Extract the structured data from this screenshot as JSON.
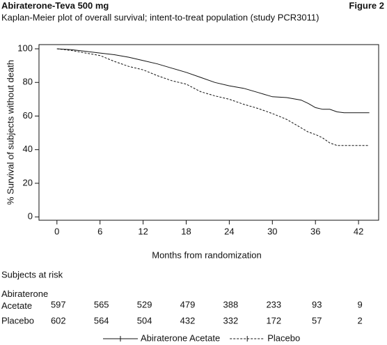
{
  "chart_data": {
    "type": "line",
    "header": "Abiraterone-Teva 500 mg",
    "figure_label": "Figure 2",
    "title": "Kaplan-Meier plot of overall survival; intent-to-treat population (study PCR3011)",
    "x_label": "Months from randomization",
    "y_label": "% Survival of subjects without death",
    "xlim": [
      -2.5,
      44.8
    ],
    "ylim": [
      -2,
      102.5
    ],
    "xticks": [
      0,
      6,
      12,
      18,
      24,
      30,
      36,
      42
    ],
    "yticks": [
      0,
      20,
      40,
      60,
      80,
      100
    ],
    "series": [
      {
        "name": "Abiraterone Acetate",
        "color": "#111111",
        "dash": false,
        "x": [
          0,
          2,
          4,
          6,
          8,
          10,
          12,
          14,
          16,
          18,
          20,
          22,
          24,
          26,
          28,
          30,
          32,
          34,
          35,
          36,
          37,
          38,
          39,
          40,
          42,
          43.5
        ],
        "values": [
          100,
          99.5,
          98.5,
          97.5,
          96.5,
          95,
          93,
          91,
          88.5,
          86,
          83,
          80,
          78,
          76.5,
          74,
          71.5,
          71,
          69.5,
          67.5,
          65,
          64,
          64,
          62.5,
          62,
          62,
          62
        ]
      },
      {
        "name": "Placebo",
        "color": "#111111",
        "dash": true,
        "x": [
          0,
          2,
          4,
          6,
          8,
          10,
          12,
          14,
          16,
          18,
          20,
          22,
          24,
          26,
          28,
          30,
          32,
          34,
          35,
          36,
          37,
          38,
          39,
          40,
          42,
          43.5
        ],
        "values": [
          100,
          99,
          97.5,
          96,
          92.5,
          89.5,
          87.5,
          84,
          81,
          79,
          74.5,
          72,
          70,
          67,
          64.5,
          61.5,
          58,
          53,
          50.5,
          49,
          47,
          44,
          42.5,
          42.5,
          42.5,
          42.5
        ]
      }
    ],
    "risk_table": {
      "title": "Subjects at risk",
      "rows": [
        {
          "label": "Abiraterone Acetate",
          "values": [
            597,
            565,
            529,
            479,
            388,
            233,
            93,
            9
          ]
        },
        {
          "label": "Placebo",
          "values": [
            602,
            564,
            504,
            432,
            332,
            172,
            57,
            2
          ]
        }
      ]
    }
  }
}
